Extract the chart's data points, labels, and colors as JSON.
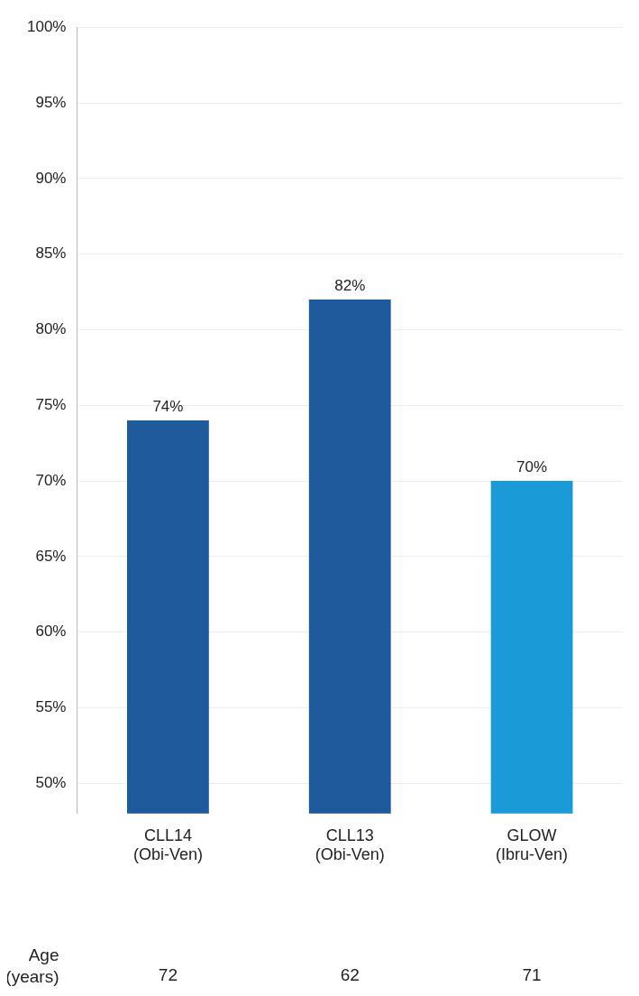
{
  "chart_data": {
    "type": "bar",
    "categories": [
      "CLL14\n(Obi-Ven)",
      "CLL13\n(Obi-Ven)",
      "GLOW\n(Ibru-Ven)"
    ],
    "values": [
      74,
      82,
      70
    ],
    "colors": [
      "#1f5b9c",
      "#1f5b9c",
      "#1a9bd7"
    ],
    "ylim": [
      48,
      100
    ],
    "yticks": [
      {
        "value": 50,
        "label": "50%"
      },
      {
        "value": 55,
        "label": "55%"
      },
      {
        "value": 60,
        "label": "60%"
      },
      {
        "value": 65,
        "label": "65%"
      },
      {
        "value": 70,
        "label": "70%"
      },
      {
        "value": 75,
        "label": "75%"
      },
      {
        "value": 80,
        "label": "80%"
      },
      {
        "value": 85,
        "label": "85%"
      },
      {
        "value": 90,
        "label": "90%"
      },
      {
        "value": 95,
        "label": "95%"
      },
      {
        "value": 100,
        "label": "100%"
      }
    ],
    "grid": "y",
    "value_labels": [
      "74%",
      "82%",
      "70%"
    ],
    "annotations": [
      "Age (years)",
      "72",
      "62",
      "71"
    ]
  }
}
